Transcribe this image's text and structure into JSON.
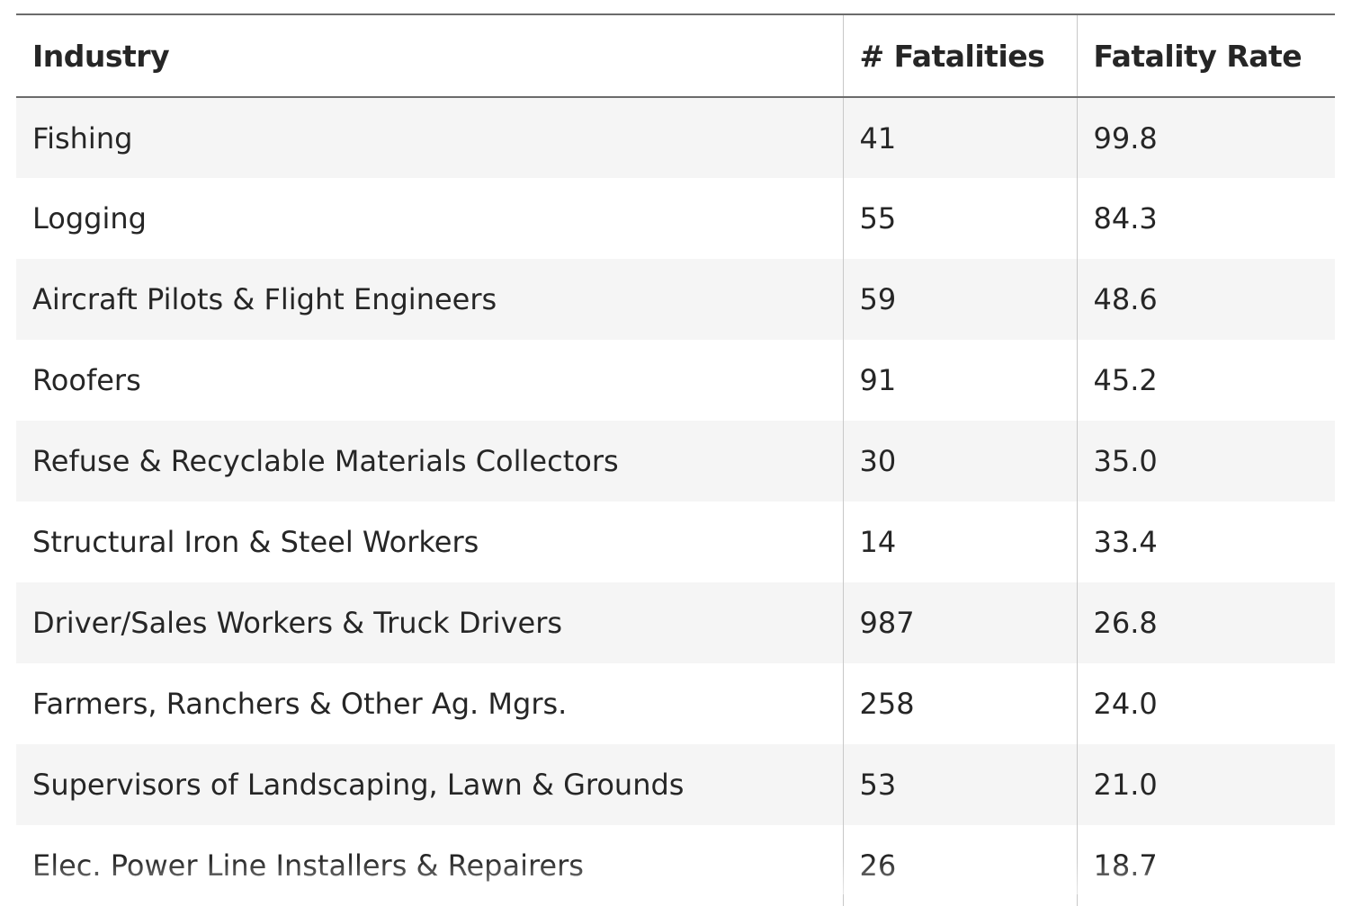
{
  "table": {
    "headers": [
      "Industry",
      "# Fatalities",
      "Fatality Rate"
    ],
    "rows": [
      {
        "industry": "Fishing",
        "fatalities": "41",
        "rate": "99.8"
      },
      {
        "industry": "Logging",
        "fatalities": "55",
        "rate": "84.3"
      },
      {
        "industry": "Aircraft Pilots & Flight Engineers",
        "fatalities": "59",
        "rate": "48.6"
      },
      {
        "industry": "Roofers",
        "fatalities": "91",
        "rate": "45.2"
      },
      {
        "industry": "Refuse & Recyclable Materials Collectors",
        "fatalities": "30",
        "rate": "35.0"
      },
      {
        "industry": "Structural Iron & Steel Workers",
        "fatalities": "14",
        "rate": "33.4"
      },
      {
        "industry": "Driver/Sales Workers & Truck Drivers",
        "fatalities": "987",
        "rate": "26.8"
      },
      {
        "industry": "Farmers, Ranchers & Other Ag. Mgrs.",
        "fatalities": "258",
        "rate": "24.0"
      },
      {
        "industry": "Supervisors of Landscaping, Lawn & Grounds",
        "fatalities": "53",
        "rate": "21.0"
      },
      {
        "industry": "Elec. Power Line Installers & Repairers",
        "fatalities": "26",
        "rate": "18.7"
      }
    ]
  },
  "colors": {
    "stripe": "#f5f5f5",
    "rule": "#6b6b6b",
    "divider": "#c8c8c8",
    "text": "#262626"
  }
}
